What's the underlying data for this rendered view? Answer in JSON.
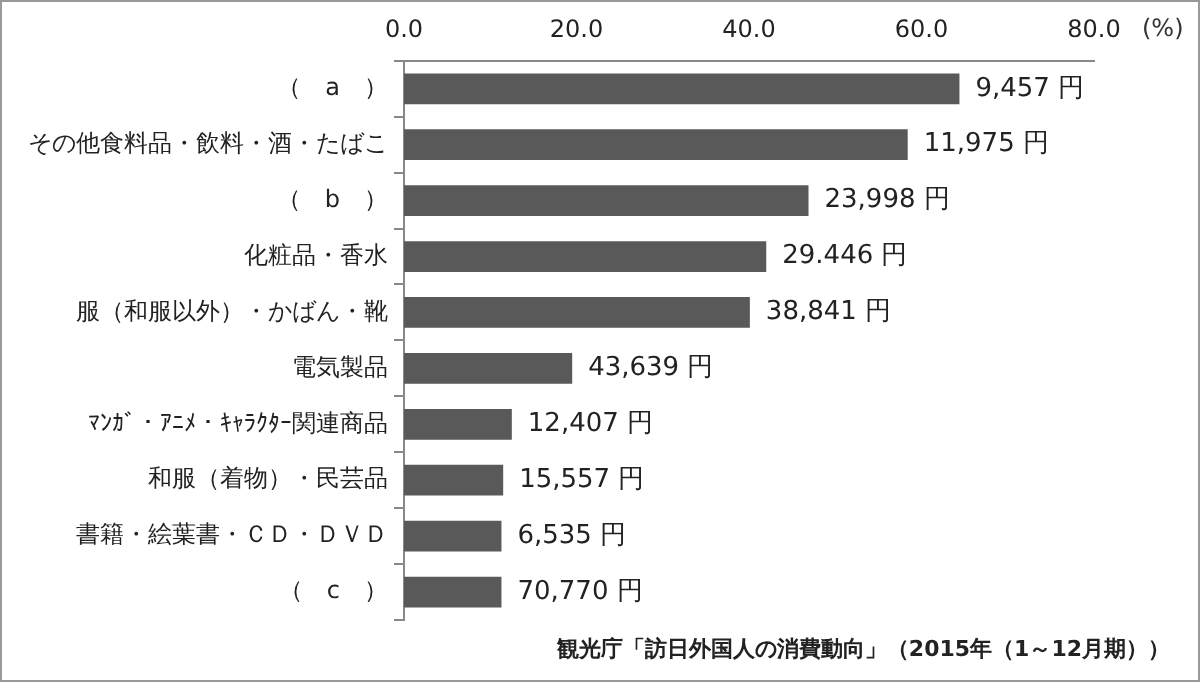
{
  "chart_data": {
    "type": "bar",
    "orientation": "horizontal",
    "xlabel": "(%)",
    "categories": [
      "（　a　）",
      "その他食料品・飲料・酒・たばこ",
      "（　b　）",
      "化粧品・香水",
      "服（和服以外）・かばん・靴",
      "電気製品",
      "ﾏﾝｶﾞ・ｱﾆﾒ・ｷｬﾗｸﾀｰ関連商品",
      "和服（着物）・民芸品",
      "書籍・絵葉書・ＣＤ・ＤＶＤ",
      "（　c　）"
    ],
    "values": [
      64.4,
      58.4,
      46.9,
      42.0,
      40.1,
      19.5,
      12.5,
      11.5,
      11.3,
      11.3
    ],
    "color": "#595959",
    "xlim": [
      0,
      80
    ],
    "xticks": [
      {
        "value": 0,
        "label": "0.0"
      },
      {
        "value": 20,
        "label": "20.0"
      },
      {
        "value": 40,
        "label": "40.0"
      },
      {
        "value": 60,
        "label": "60.0"
      },
      {
        "value": 80,
        "label": "80.0"
      }
    ],
    "grid": false,
    "legend": false,
    "annotations": [
      {
        "text": "9,457 円",
        "x": 64.4,
        "y": "（　a　）"
      },
      {
        "text": "11,975 円",
        "x": 58.4,
        "y": "その他食料品・飲料・酒・たばこ"
      },
      {
        "text": "23,998 円",
        "x": 46.9,
        "y": "（　b　）"
      },
      {
        "text": "29.446 円",
        "x": 42.0,
        "y": "化粧品・香水"
      },
      {
        "text": "38,841 円",
        "x": 40.1,
        "y": "服（和服以外）・かばん・靴"
      },
      {
        "text": "43,639 円",
        "x": 19.5,
        "y": "電気製品"
      },
      {
        "text": "12,407 円",
        "x": 12.5,
        "y": "ﾏﾝｶﾞ・ｱﾆﾒ・ｷｬﾗｸﾀｰ関連商品"
      },
      {
        "text": "15,557 円",
        "x": 11.5,
        "y": "和服（着物）・民芸品"
      },
      {
        "text": "6,535 円",
        "x": 11.3,
        "y": "書籍・絵葉書・ＣＤ・ＤＶＤ"
      },
      {
        "text": "70,770 円",
        "x": 11.3,
        "y": "（　c　）"
      },
      "観光庁「訪日外国人の消費動向」（2015年（1～12月期））"
    ]
  }
}
